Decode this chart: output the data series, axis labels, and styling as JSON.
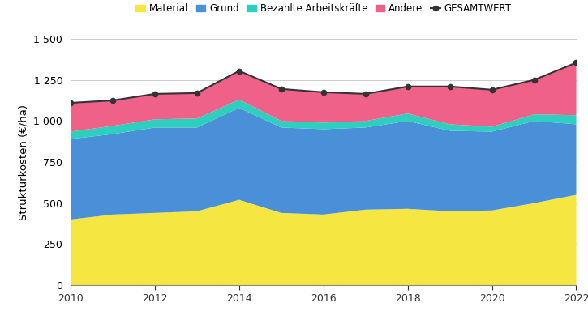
{
  "years": [
    2010,
    2011,
    2012,
    2013,
    2014,
    2015,
    2016,
    2017,
    2018,
    2019,
    2020,
    2021,
    2022
  ],
  "material": [
    400,
    430,
    440,
    450,
    520,
    440,
    430,
    460,
    465,
    450,
    455,
    500,
    550
  ],
  "grund": [
    490,
    490,
    520,
    510,
    560,
    520,
    520,
    500,
    535,
    490,
    480,
    500,
    430
  ],
  "bezahlte": [
    45,
    50,
    50,
    55,
    50,
    40,
    40,
    40,
    45,
    40,
    30,
    40,
    55
  ],
  "andere": [
    175,
    155,
    155,
    155,
    175,
    195,
    185,
    165,
    165,
    230,
    225,
    210,
    320
  ],
  "gesamtwert": [
    1110,
    1125,
    1165,
    1170,
    1305,
    1195,
    1175,
    1165,
    1210,
    1210,
    1190,
    1250,
    1355
  ],
  "colors": {
    "material": "#f5e642",
    "grund": "#4a90d9",
    "bezahlte": "#2ecfbe",
    "andere": "#f0618a",
    "gesamtwert": "#333333"
  },
  "ylabel": "Strukturkosten (€/ha)",
  "ylim": [
    0,
    1500
  ],
  "yticks": [
    0,
    250,
    500,
    750,
    1000,
    1250,
    1500
  ],
  "ytick_labels": [
    "0",
    "250",
    "500",
    "750",
    "1 000",
    "1 250",
    "1 500"
  ],
  "xtick_years": [
    2010,
    2012,
    2014,
    2016,
    2018,
    2020,
    2022
  ],
  "legend_labels": [
    "Material",
    "Grund",
    "Bezahlte Arbeitskräfte",
    "Andere",
    "GESAMTWERT"
  ],
  "background_color": "#ffffff",
  "grid_color": "#cccccc"
}
